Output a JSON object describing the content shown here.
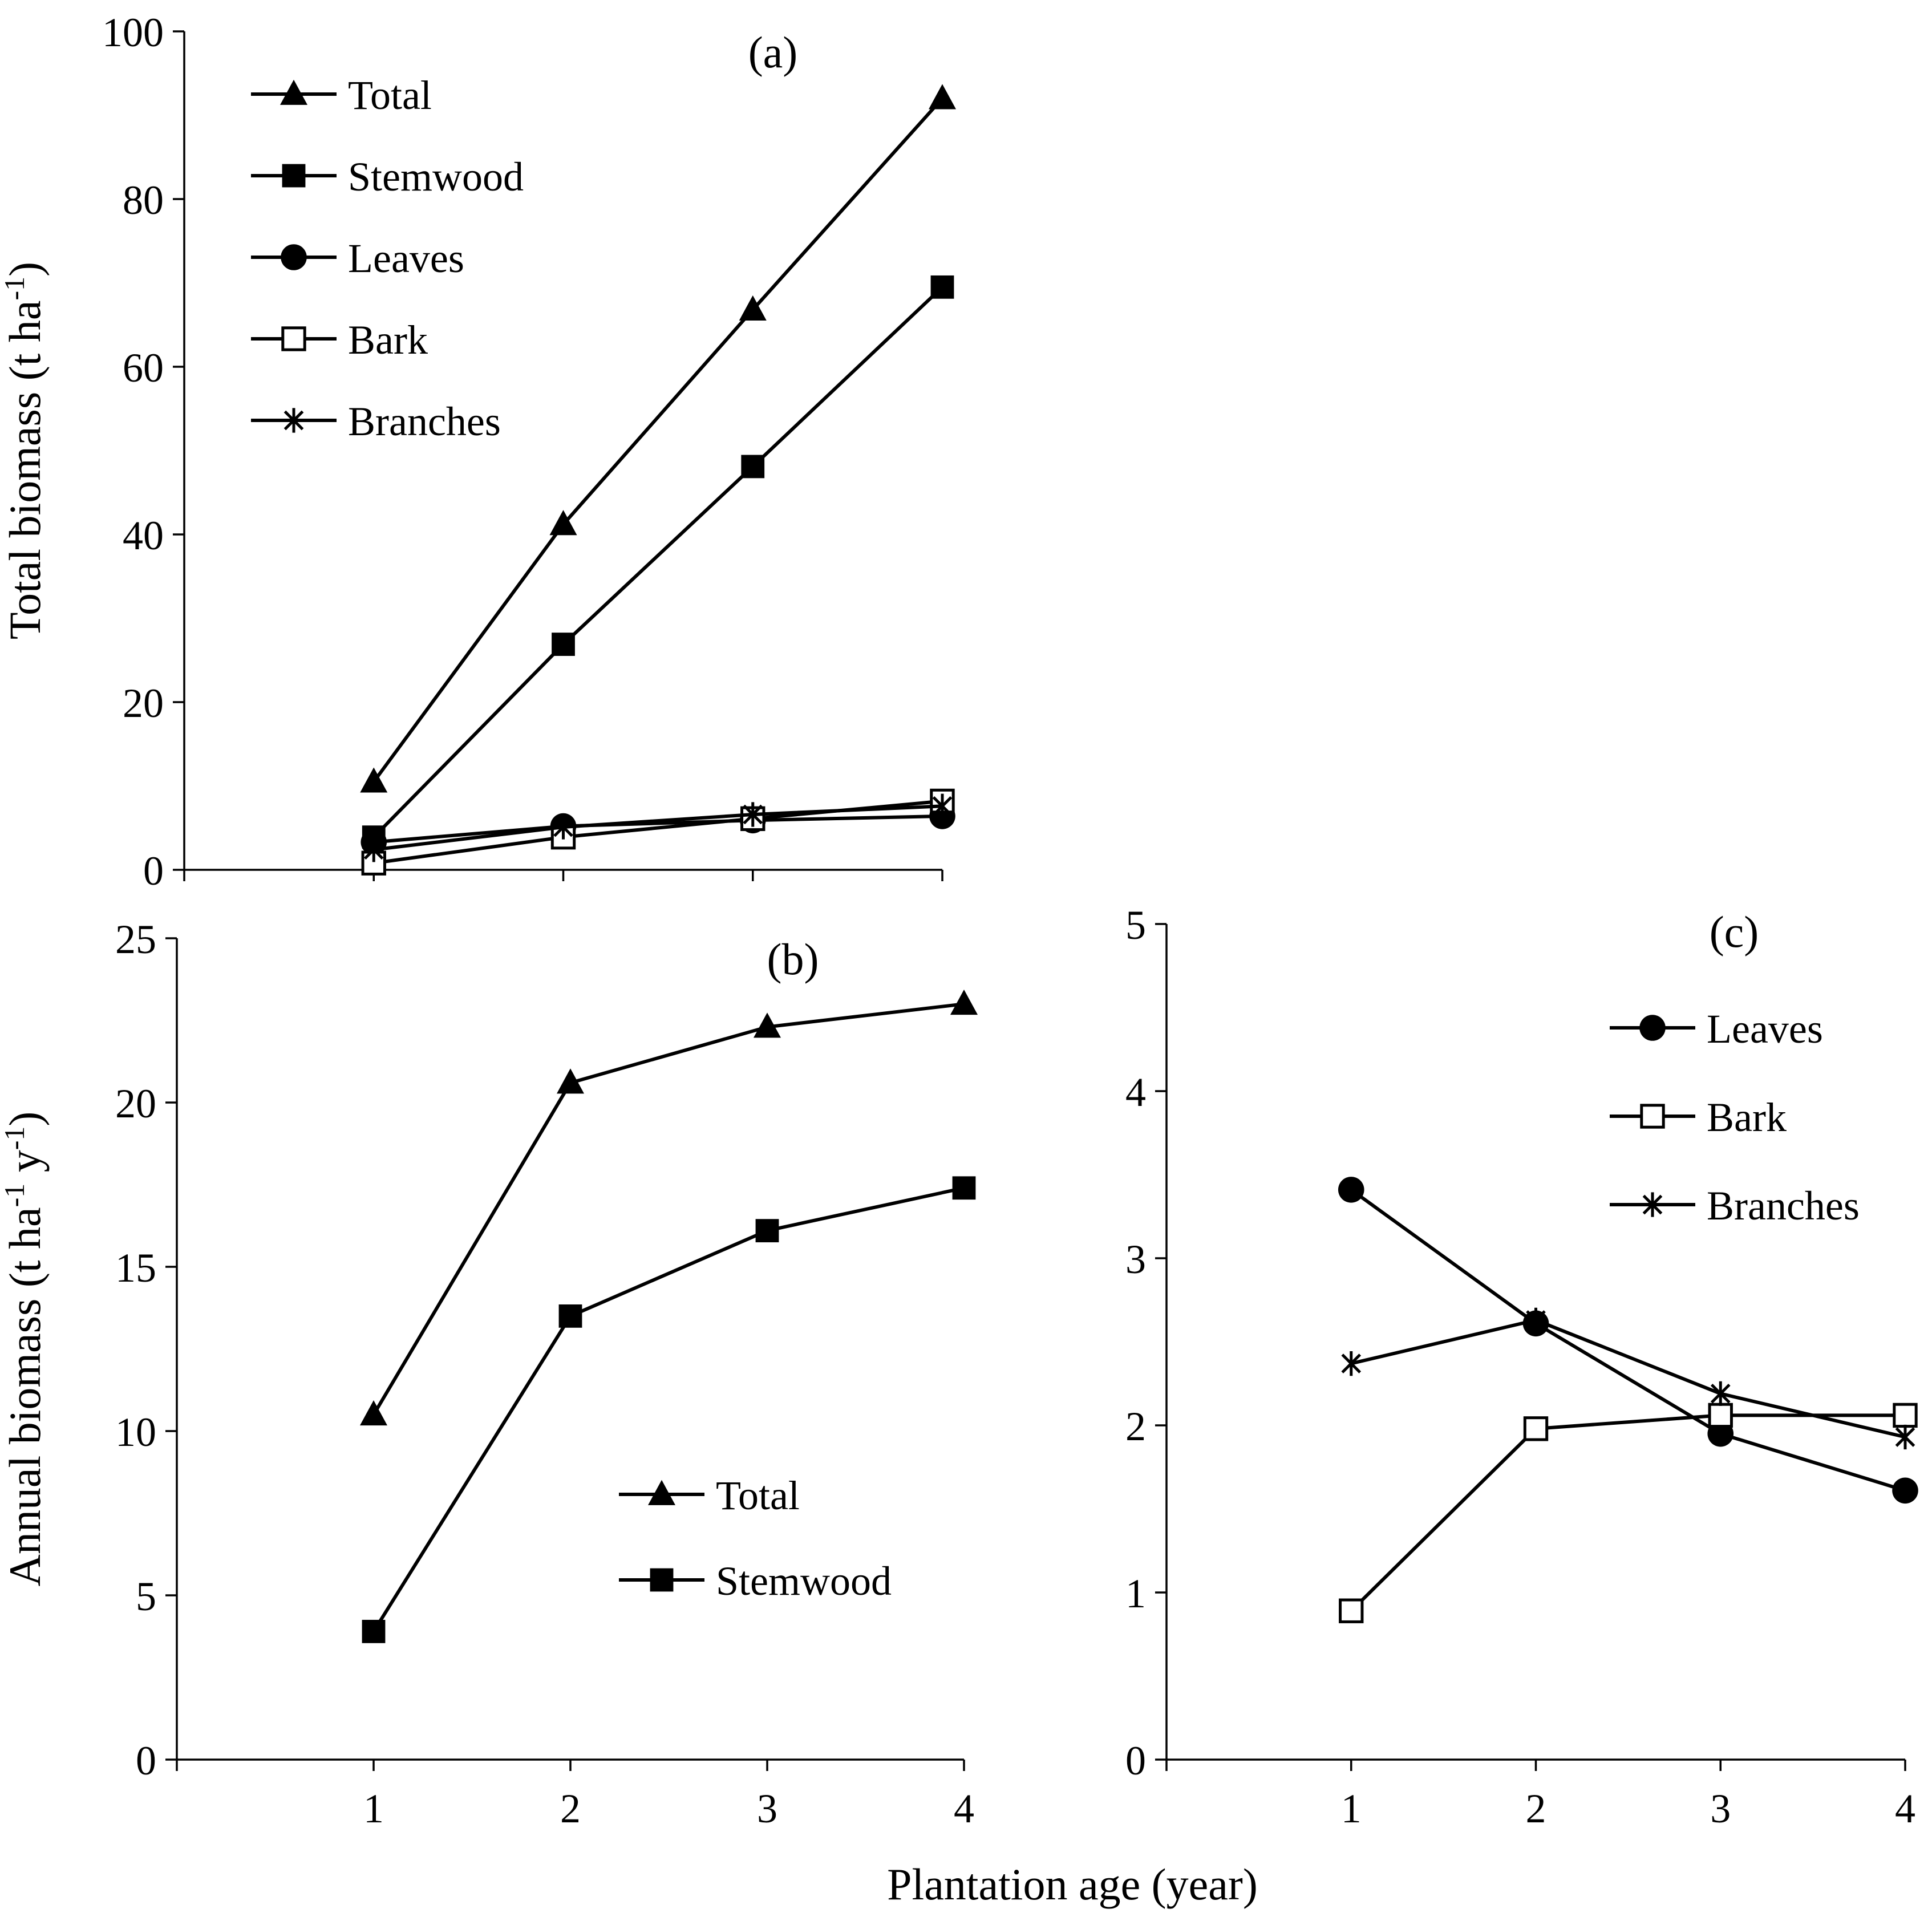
{
  "figure": {
    "xlabel": "Plantation age (year)"
  },
  "chart_data": [
    {
      "id": "a",
      "panel_label": "(a)",
      "type": "line",
      "ylabel_main": "Total biomass (t ha",
      "ylabel_sup": "-1",
      "ylabel_end": ")",
      "xlabel": "Plantation age (year)",
      "ylim": [
        0,
        100
      ],
      "xlim": [
        0,
        4
      ],
      "yticks": [
        "0",
        "20",
        "40",
        "60",
        "80",
        "100"
      ],
      "xticks": [],
      "legend_position": "top-left",
      "series": [
        {
          "name": "Total",
          "marker": "triangle",
          "x": [
            1,
            2,
            3,
            4
          ],
          "values": [
            10.5,
            41.2,
            66.8,
            92.0
          ]
        },
        {
          "name": "Stemwood",
          "marker": "square",
          "x": [
            1,
            2,
            3,
            4
          ],
          "values": [
            3.9,
            26.9,
            48.1,
            69.5
          ]
        },
        {
          "name": "Leaves",
          "marker": "circle",
          "x": [
            1,
            2,
            3,
            4
          ],
          "values": [
            3.3,
            5.2,
            5.9,
            6.4
          ]
        },
        {
          "name": "Bark",
          "marker": "open-square",
          "x": [
            1,
            2,
            3,
            4
          ],
          "values": [
            0.8,
            3.9,
            6.1,
            8.2
          ]
        },
        {
          "name": "Branches",
          "marker": "star",
          "x": [
            1,
            2,
            3,
            4
          ],
          "values": [
            2.4,
            5.1,
            6.6,
            7.6
          ]
        }
      ]
    },
    {
      "id": "b",
      "panel_label": "(b)",
      "type": "line",
      "ylabel_main": "Annual biomass (t ha",
      "ylabel_sup": "-1",
      "ylabel_mid": " y",
      "ylabel_sup2": "-1",
      "ylabel_end": ")",
      "xlabel": "Plantation age (year)",
      "ylim": [
        0,
        25
      ],
      "xlim": [
        0,
        4
      ],
      "yticks": [
        "0",
        "5",
        "10",
        "15",
        "20",
        "25"
      ],
      "xticks": [
        "1",
        "2",
        "3",
        "4"
      ],
      "legend_position": "bottom-right",
      "series": [
        {
          "name": "Total",
          "marker": "triangle",
          "x": [
            1,
            2,
            3,
            4
          ],
          "values": [
            10.5,
            20.6,
            22.3,
            23.0
          ]
        },
        {
          "name": "Stemwood",
          "marker": "square",
          "x": [
            1,
            2,
            3,
            4
          ],
          "values": [
            3.9,
            13.5,
            16.1,
            17.4
          ]
        }
      ]
    },
    {
      "id": "c",
      "panel_label": "(c)",
      "type": "line",
      "xlabel": "Plantation age (year)",
      "ylim": [
        0,
        5
      ],
      "xlim": [
        0,
        4
      ],
      "yticks": [
        "0",
        "1",
        "2",
        "3",
        "4",
        "5"
      ],
      "xticks": [
        "1",
        "2",
        "3",
        "4"
      ],
      "legend_position": "top-right",
      "series": [
        {
          "name": "Leaves",
          "marker": "circle",
          "x": [
            1,
            2,
            3,
            4
          ],
          "values": [
            3.41,
            2.61,
            1.95,
            1.61
          ]
        },
        {
          "name": "Bark",
          "marker": "open-square",
          "x": [
            1,
            2,
            3,
            4
          ],
          "values": [
            0.89,
            1.98,
            2.06,
            2.06
          ]
        },
        {
          "name": "Branches",
          "marker": "star",
          "x": [
            1,
            2,
            3,
            4
          ],
          "values": [
            2.37,
            2.63,
            2.19,
            1.93
          ]
        }
      ]
    }
  ]
}
